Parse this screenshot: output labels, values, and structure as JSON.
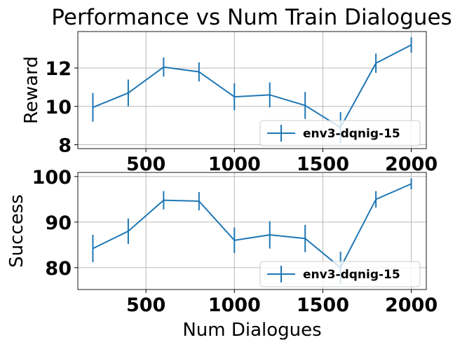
{
  "figure": {
    "title": "Performance vs Num Train Dialogues"
  },
  "chart_data": [
    {
      "type": "line",
      "title": "Performance vs Num Train Dialogues",
      "xlabel": "",
      "ylabel": "Reward",
      "x": [
        200,
        400,
        600,
        800,
        1000,
        1200,
        1400,
        1600,
        1800,
        2000
      ],
      "xlim": [
        115,
        2085
      ],
      "ylim": [
        7.8,
        13.9
      ],
      "xticks": [
        500,
        1000,
        1500,
        2000
      ],
      "yticks": [
        8,
        10,
        12
      ],
      "grid": true,
      "legend_position": "lower-right",
      "series": [
        {
          "name": "env3-dqnig-15",
          "color": "#1f77b4",
          "values": [
            9.95,
            10.7,
            12.05,
            11.8,
            10.5,
            10.6,
            10.05,
            8.9,
            12.25,
            13.2
          ],
          "errors": [
            0.75,
            0.7,
            0.5,
            0.5,
            0.7,
            0.65,
            0.7,
            0.8,
            0.5,
            0.4
          ]
        }
      ]
    },
    {
      "type": "line",
      "xlabel": "Num Dialogues",
      "ylabel": "Success",
      "x": [
        200,
        400,
        600,
        800,
        1000,
        1200,
        1400,
        1600,
        1800,
        2000
      ],
      "xlim": [
        115,
        2085
      ],
      "ylim": [
        75.2,
        100.9
      ],
      "xticks": [
        500,
        1000,
        1500,
        2000
      ],
      "yticks": [
        80,
        90,
        100
      ],
      "grid": true,
      "legend_position": "lower-right",
      "series": [
        {
          "name": "env3-dqnig-15",
          "color": "#1f77b4",
          "values": [
            84.2,
            88.0,
            94.8,
            94.6,
            86.0,
            87.2,
            86.4,
            80.0,
            95.0,
            98.4
          ],
          "errors": [
            3.0,
            2.8,
            2.0,
            2.0,
            2.8,
            3.0,
            3.0,
            3.5,
            1.8,
            1.2
          ]
        }
      ]
    }
  ]
}
